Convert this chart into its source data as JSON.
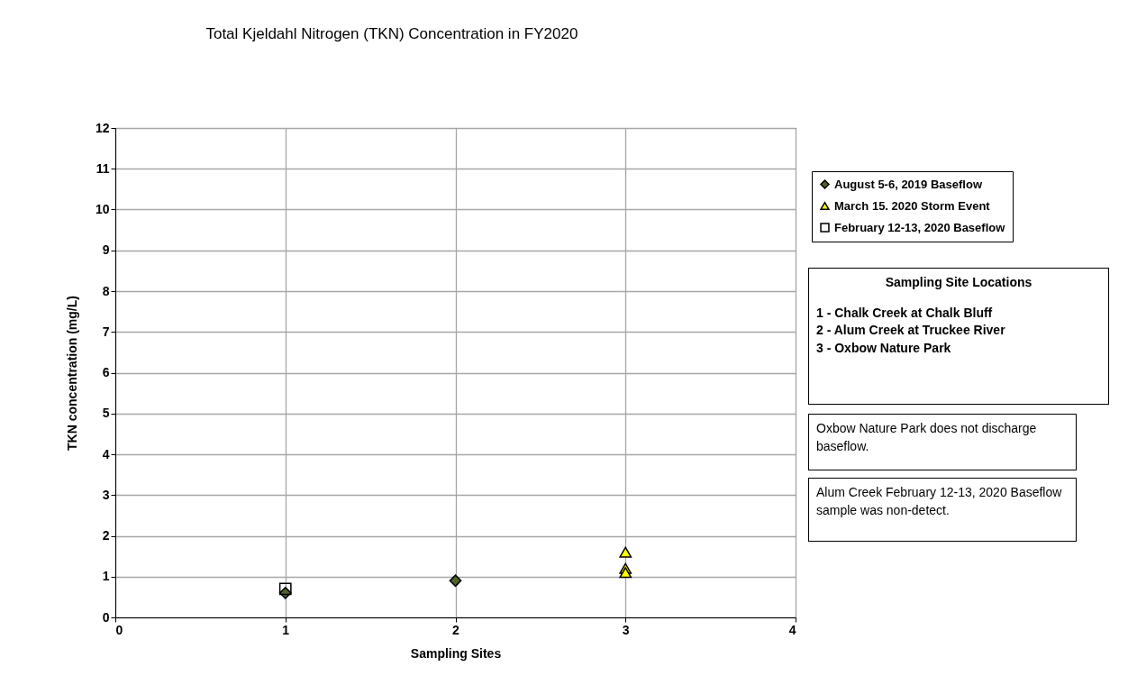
{
  "chart_data": {
    "type": "scatter",
    "title": "Total Kjeldahl Nitrogen (TKN) Concentration in FY2020",
    "xlabel": "Sampling Sites",
    "ylabel": "TKN concentration (mg/L)",
    "xlim": [
      0,
      4
    ],
    "xticks": [
      0,
      1,
      2,
      3,
      4
    ],
    "ylim": [
      0,
      12
    ],
    "yticks": [
      0,
      1,
      2,
      3,
      4,
      5,
      6,
      7,
      8,
      9,
      10,
      11,
      12
    ],
    "grid": true,
    "legend": "right",
    "series": [
      {
        "name": "August 5-6, 2019 Baseflow",
        "color": "#4f6228",
        "marker": "diamond",
        "x": [
          1,
          2
        ],
        "values": [
          0.6,
          0.9
        ]
      },
      {
        "name": "March 15. 2020 Storm Event",
        "color": "#ffff00",
        "marker": "triangle",
        "x": [
          3,
          3,
          3
        ],
        "values": [
          1.6,
          1.2,
          1.1
        ]
      },
      {
        "name": "February 12-13, 2020 Baseflow",
        "color": "#000000",
        "marker": "square",
        "x": [
          1
        ],
        "values": [
          0.7
        ]
      }
    ],
    "annotations": [
      "Sampling Site Locations",
      "1 - Chalk Creek at Chalk Bluff",
      "2 - Alum Creek at Truckee River",
      "3 - Oxbow Nature Park",
      "Oxbow Nature Park does not discharge baseflow.",
      "Alum Creek February 12-13, 2020 Baseflow sample was non-detect."
    ]
  }
}
